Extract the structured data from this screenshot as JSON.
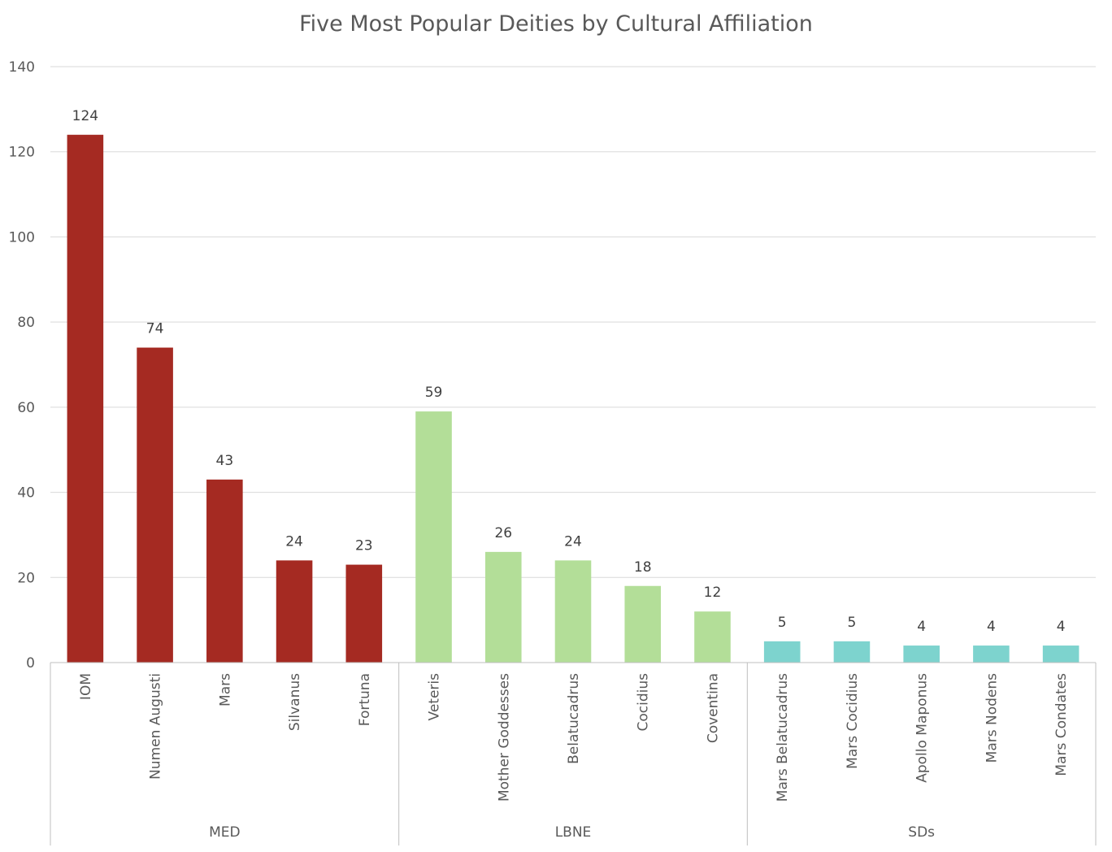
{
  "chart_data": {
    "type": "bar",
    "title": "Five Most Popular Deities by Cultural Affiliation",
    "xlabel": "",
    "ylabel": "",
    "ylim": [
      0,
      140
    ],
    "yticks": [
      "0",
      "20",
      "40",
      "60",
      "80",
      "100",
      "120",
      "140"
    ],
    "grid": true,
    "legend": "none",
    "groups": [
      {
        "name": "MED",
        "color": "#A52A22",
        "categories": [
          "IOM",
          "Numen Augusti",
          "Mars",
          "Silvanus",
          "Fortuna"
        ],
        "values": [
          124,
          74,
          43,
          24,
          23
        ]
      },
      {
        "name": "LBNE",
        "color": "#B3DE98",
        "categories": [
          "Veteris",
          "Mother Goddesses",
          "Belatucadrus",
          "Cocidius",
          "Coventina"
        ],
        "values": [
          59,
          26,
          24,
          18,
          12
        ]
      },
      {
        "name": "SDs",
        "color": "#7DD3CE",
        "categories": [
          "Mars Belatucadrus",
          "Mars Cocidius",
          "Apollo Maponus",
          "Mars Nodens",
          "Mars Condates"
        ],
        "values": [
          5,
          5,
          4,
          4,
          4
        ]
      }
    ]
  }
}
